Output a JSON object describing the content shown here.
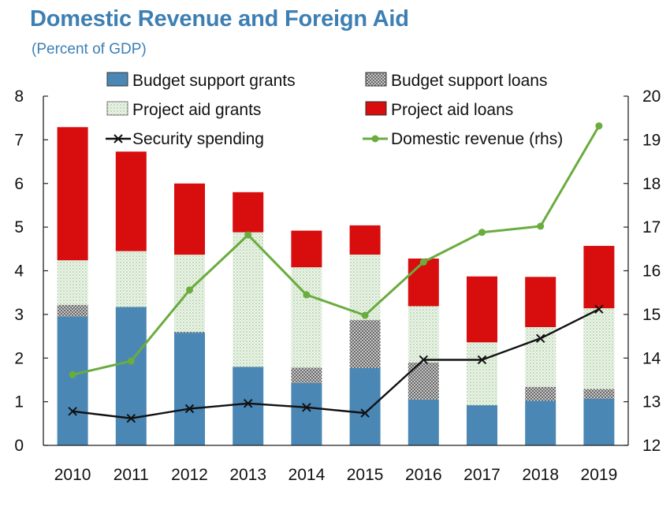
{
  "chart_data": {
    "type": "bar",
    "title": "Domestic Revenue and Foreign Aid",
    "subtitle": "(Percent of GDP)",
    "categories": [
      "2010",
      "2011",
      "2012",
      "2013",
      "2014",
      "2015",
      "2016",
      "2017",
      "2018",
      "2019"
    ],
    "stacked": true,
    "ylim": [
      0,
      8
    ],
    "y2lim": [
      12,
      20
    ],
    "yticks": [
      "0",
      "1",
      "2",
      "3",
      "4",
      "5",
      "6",
      "7",
      "8"
    ],
    "y2ticks": [
      "12",
      "13",
      "14",
      "15",
      "16",
      "17",
      "18",
      "19",
      "20"
    ],
    "grid": false,
    "legend_position": "top",
    "series": [
      {
        "name": "Budget support grants",
        "kind": "bar",
        "color": "#4a87b4",
        "pattern": "solid",
        "values": [
          2.95,
          3.17,
          2.58,
          1.8,
          1.43,
          1.77,
          1.05,
          0.92,
          1.02,
          1.07
        ]
      },
      {
        "name": "Budget support loans",
        "kind": "bar",
        "color": "#8c8c8c",
        "pattern": "crosshatch",
        "values": [
          0.27,
          0.0,
          0.02,
          0.0,
          0.35,
          1.1,
          0.85,
          0.0,
          0.32,
          0.22
        ]
      },
      {
        "name": "Project aid grants",
        "kind": "bar",
        "color": "#dfeedd",
        "pattern": "dotted",
        "values": [
          1.02,
          1.28,
          1.77,
          3.08,
          2.3,
          1.5,
          1.29,
          1.44,
          1.37,
          1.85
        ]
      },
      {
        "name": "Project aid loans",
        "kind": "bar",
        "color": "#d80d0d",
        "pattern": "solid",
        "values": [
          3.05,
          2.28,
          1.63,
          0.92,
          0.84,
          0.67,
          1.09,
          1.51,
          1.15,
          1.43
        ]
      },
      {
        "name": "Security spending",
        "kind": "line",
        "axis": "left",
        "color": "#111111",
        "marker": "x",
        "values": [
          0.78,
          0.62,
          0.84,
          0.96,
          0.87,
          0.74,
          1.96,
          1.96,
          2.45,
          3.12
        ]
      },
      {
        "name": "Domestic revenue (rhs)",
        "kind": "line",
        "axis": "right",
        "color": "#6aac3e",
        "marker": "dot",
        "values": [
          13.62,
          13.93,
          15.56,
          16.82,
          15.45,
          14.98,
          16.2,
          16.88,
          17.02,
          19.32
        ]
      }
    ]
  }
}
